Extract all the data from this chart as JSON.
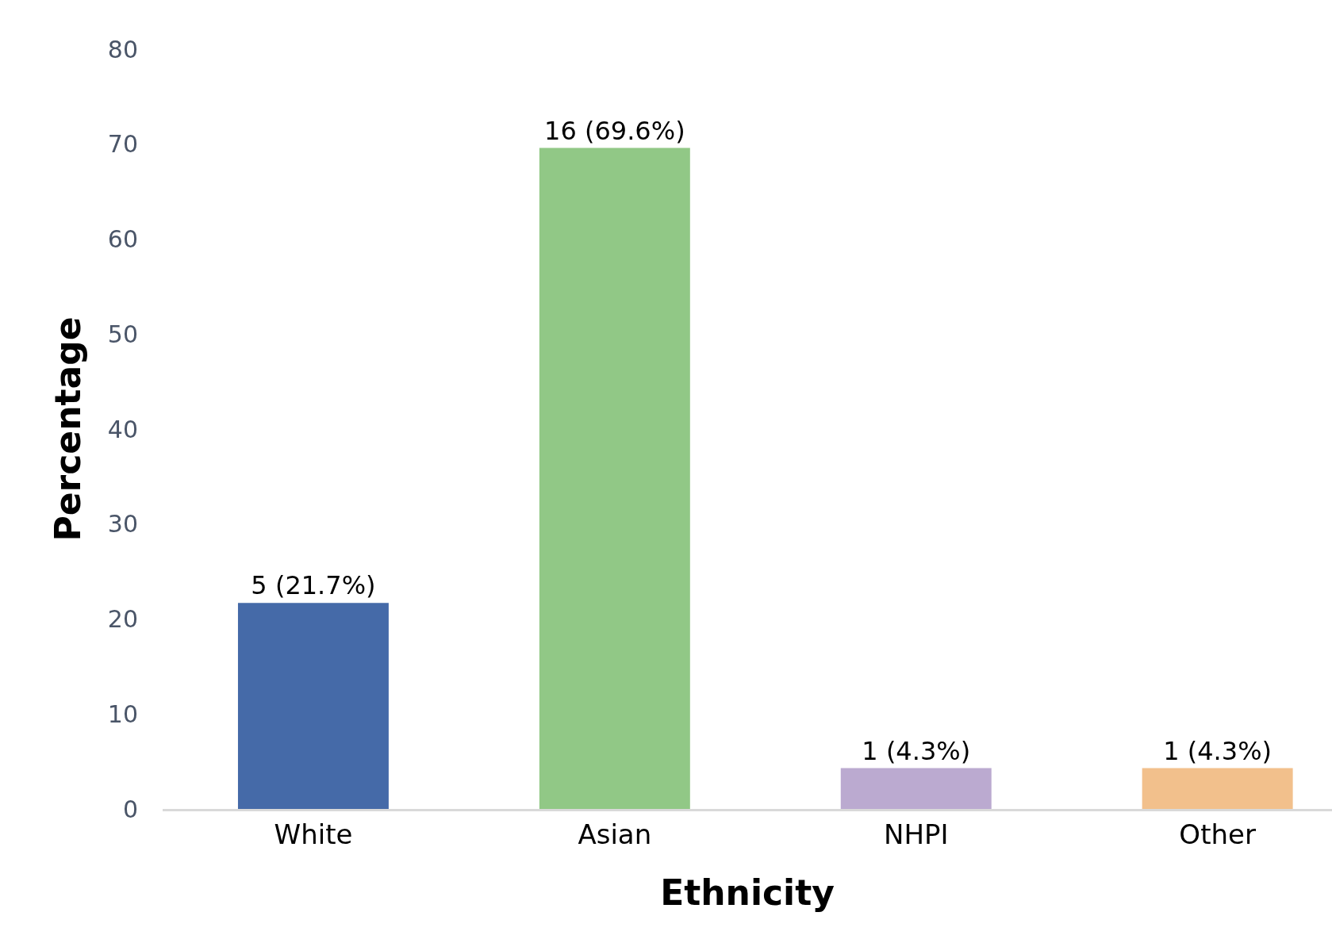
{
  "chart_data": {
    "type": "bar",
    "xlabel": "Ethnicity",
    "ylabel": "Percentage",
    "categories": [
      "White",
      "Asian",
      "NHPI",
      "Other"
    ],
    "values": [
      21.7,
      69.6,
      4.3,
      4.3
    ],
    "colors": [
      "#456aa8",
      "#91c886",
      "#bbaad0",
      "#f2c08c"
    ],
    "value_labels": [
      "5 (21.7%)",
      "16 (69.6%)",
      "1 (4.3%)",
      "1 (4.3%)"
    ],
    "ylim": [
      0,
      80
    ],
    "yticks": [
      0,
      10,
      20,
      30,
      40,
      50,
      60,
      70,
      80
    ],
    "grid": false
  }
}
